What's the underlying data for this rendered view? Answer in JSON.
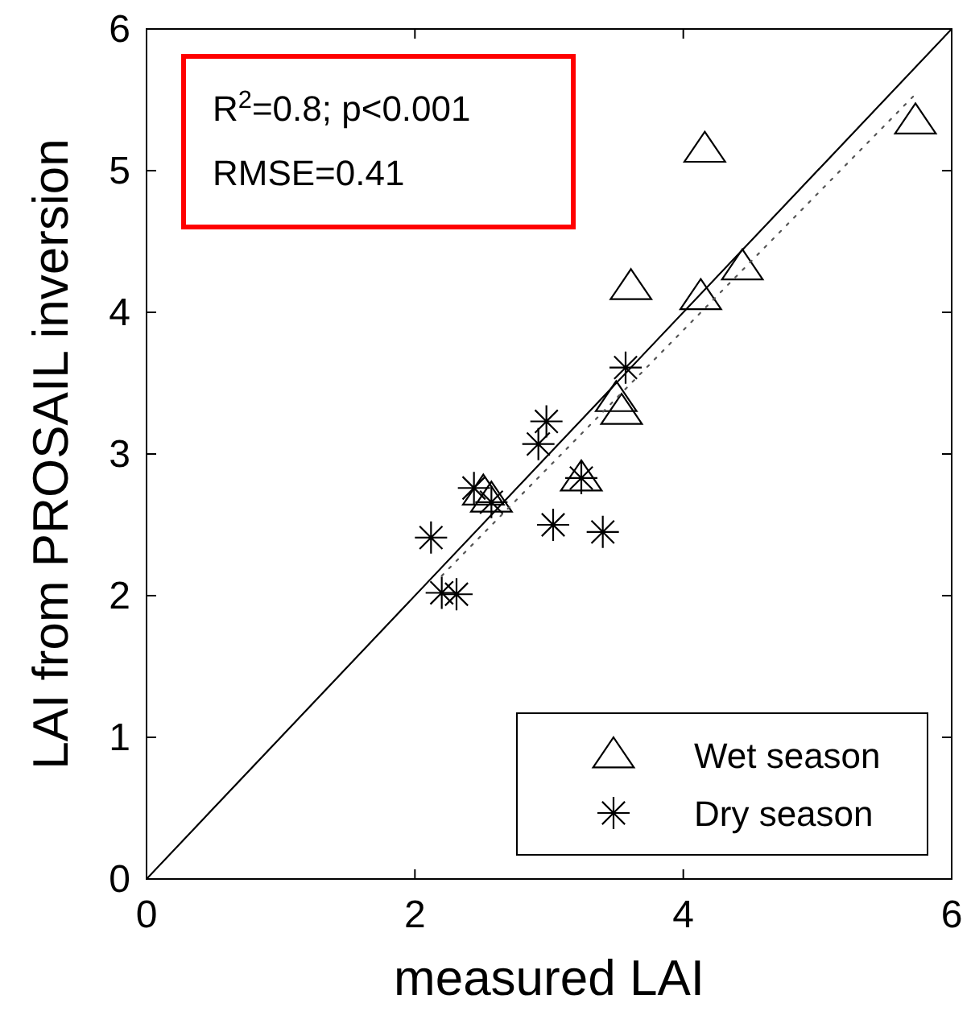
{
  "chart_data": {
    "type": "scatter",
    "xlabel": "measured LAI",
    "ylabel": "LAI from PROSAIL inversion",
    "xlim": [
      0,
      6
    ],
    "ylim": [
      0,
      6
    ],
    "xticks": [
      0,
      2,
      4,
      6
    ],
    "yticks": [
      0,
      1,
      2,
      3,
      4,
      5,
      6
    ],
    "grid": false,
    "legend": "bottom right",
    "annotations": [
      "R$^{2}$=0.8; p<0.001",
      "RMSE=0.41"
    ],
    "series": [
      {
        "name": "Wet season",
        "color": "#000000",
        "marker": "triangle",
        "x": [
          5.73,
          4.16,
          3.61,
          4.13,
          4.44,
          3.5,
          3.54,
          3.24,
          2.51,
          2.57
        ],
        "values": [
          5.35,
          5.15,
          4.18,
          4.11,
          4.32,
          3.39,
          3.3,
          2.83,
          2.73,
          2.68
        ]
      },
      {
        "name": "Dry season",
        "color": "#000000",
        "marker": "cross",
        "x": [
          3.57,
          2.98,
          2.92,
          3.24,
          2.44,
          2.57,
          2.12,
          3.03,
          3.4,
          2.2,
          2.31
        ],
        "values": [
          3.61,
          3.23,
          3.07,
          2.83,
          2.76,
          2.66,
          2.41,
          2.5,
          2.45,
          2.02,
          2.01
        ]
      },
      {
        "type": "line",
        "color": "#000000",
        "line_style": "solid",
        "x": [
          0,
          6
        ],
        "values": [
          0,
          6
        ]
      },
      {
        "type": "line",
        "color": "#555555",
        "line_style": "dotted",
        "x": [
          2.2,
          5.73
        ],
        "values": [
          2.14,
          5.54
        ]
      }
    ]
  }
}
